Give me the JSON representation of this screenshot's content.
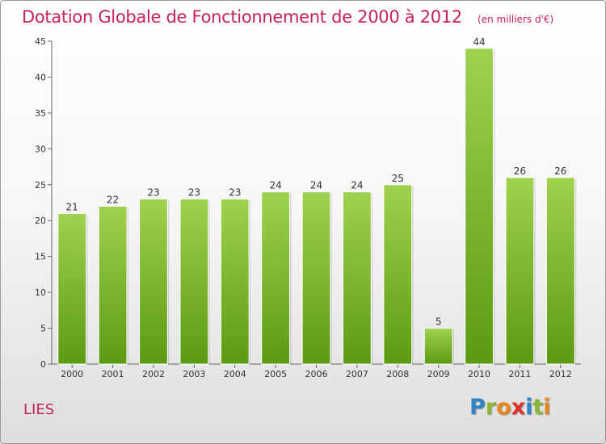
{
  "header": {
    "title": "Dotation Globale de Fonctionnement de 2000 à 2012",
    "subtitle": "(en milliers d'€)"
  },
  "footer": {
    "commune": "LIES",
    "logo_letters": [
      "P",
      "r",
      "o",
      "x",
      "i",
      "t",
      "i"
    ],
    "logo_colors": [
      "#2f84c6",
      "#8ab833",
      "#e8861a",
      "#e0302a",
      "#2f84c6",
      "#8ab833",
      "#e8861a"
    ]
  },
  "colors": {
    "bar_top": "#9fd24f",
    "bar_bottom": "#5c9a12",
    "title": "#c8205a"
  },
  "chart_data": {
    "type": "bar",
    "title": "Dotation Globale de Fonctionnement de 2000 à 2012",
    "subtitle": "(en milliers d'€)",
    "categories": [
      "2000",
      "2001",
      "2002",
      "2003",
      "2004",
      "2005",
      "2006",
      "2007",
      "2008",
      "2009",
      "2010",
      "2011",
      "2012"
    ],
    "values": [
      21,
      22,
      23,
      23,
      23,
      24,
      24,
      24,
      25,
      5,
      44,
      26,
      26
    ],
    "ylim": [
      0,
      45
    ],
    "yticks": [
      0,
      5,
      10,
      15,
      20,
      25,
      30,
      35,
      40,
      45
    ],
    "grid": false,
    "legend": "none",
    "data_labels": true
  }
}
